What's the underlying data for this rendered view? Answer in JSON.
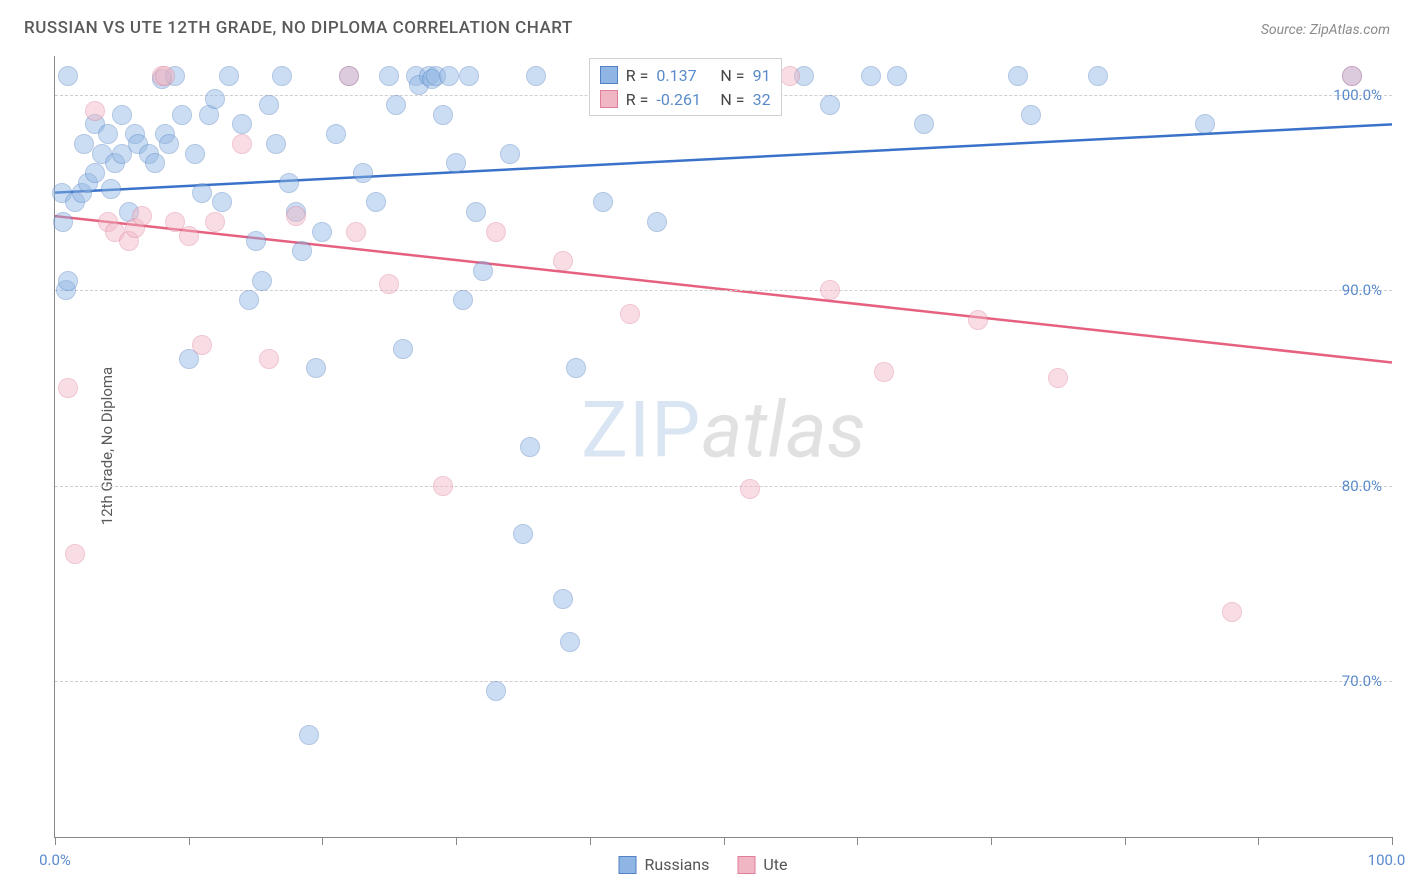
{
  "title": "RUSSIAN VS UTE 12TH GRADE, NO DIPLOMA CORRELATION CHART",
  "source": "Source: ZipAtlas.com",
  "ylabel": "12th Grade, No Diploma",
  "watermark": {
    "part1": "ZIP",
    "part2": "atlas"
  },
  "chart": {
    "type": "scatter",
    "background_color": "#ffffff",
    "grid_color": "#cfcfcf",
    "axis_color": "#888888",
    "tick_label_color": "#5a8acb",
    "label_color": "#5a5a5a",
    "title_fontsize": 17,
    "label_fontsize": 15,
    "xlim": [
      0,
      100
    ],
    "ylim": [
      62,
      102
    ],
    "y_gridlines": [
      70,
      80,
      90,
      100
    ],
    "y_tick_labels": [
      "70.0%",
      "80.0%",
      "90.0%",
      "100.0%"
    ],
    "x_ticks": [
      0,
      10,
      20,
      30,
      40,
      50,
      60,
      70,
      80,
      90,
      100
    ],
    "x_tick_labels": {
      "start": "0.0%",
      "end": "100.0%"
    },
    "point_radius": 10,
    "point_opacity": 0.45,
    "series": [
      {
        "name": "Russians",
        "fill": "#8eb5e3",
        "stroke": "#5382c4",
        "trend_color": "#3a72c9",
        "trend_width": 2.5,
        "R": "0.137",
        "N": "91",
        "trend": {
          "x1": 0,
          "y1": 95,
          "x2": 100,
          "y2": 98.5
        },
        "points": [
          [
            0.5,
            95
          ],
          [
            0.6,
            93.5
          ],
          [
            0.8,
            90
          ],
          [
            1,
            90.5
          ],
          [
            1,
            101
          ],
          [
            1.5,
            94.5
          ],
          [
            2,
            95
          ],
          [
            2.2,
            97.5
          ],
          [
            2.5,
            95.5
          ],
          [
            3,
            96
          ],
          [
            3,
            98.5
          ],
          [
            3.5,
            97
          ],
          [
            4,
            98
          ],
          [
            4.2,
            95.2
          ],
          [
            4.5,
            96.5
          ],
          [
            5,
            99
          ],
          [
            5,
            97
          ],
          [
            5.5,
            94
          ],
          [
            6,
            98
          ],
          [
            6.2,
            97.5
          ],
          [
            7,
            97
          ],
          [
            7.5,
            96.5
          ],
          [
            8,
            100.8
          ],
          [
            8.2,
            98
          ],
          [
            8.5,
            97.5
          ],
          [
            9,
            101
          ],
          [
            9.5,
            99
          ],
          [
            10,
            86.5
          ],
          [
            10.5,
            97
          ],
          [
            11,
            95
          ],
          [
            11.5,
            99
          ],
          [
            12,
            99.8
          ],
          [
            12.5,
            94.5
          ],
          [
            13,
            101
          ],
          [
            14,
            98.5
          ],
          [
            14.5,
            89.5
          ],
          [
            15,
            92.5
          ],
          [
            15.5,
            90.5
          ],
          [
            16,
            99.5
          ],
          [
            16.5,
            97.5
          ],
          [
            17,
            101
          ],
          [
            17.5,
            95.5
          ],
          [
            18,
            94
          ],
          [
            18.5,
            92
          ],
          [
            19,
            67.2
          ],
          [
            19.5,
            86
          ],
          [
            20,
            93
          ],
          [
            21,
            98
          ],
          [
            22,
            101
          ],
          [
            23,
            96
          ],
          [
            24,
            94.5
          ],
          [
            25,
            101
          ],
          [
            25.5,
            99.5
          ],
          [
            26,
            87
          ],
          [
            27,
            101
          ],
          [
            27.2,
            100.5
          ],
          [
            28,
            101
          ],
          [
            28.2,
            100.8
          ],
          [
            28.5,
            101
          ],
          [
            29,
            99
          ],
          [
            29.5,
            101
          ],
          [
            30,
            96.5
          ],
          [
            30.5,
            89.5
          ],
          [
            31,
            101
          ],
          [
            31.5,
            94
          ],
          [
            32,
            91
          ],
          [
            33,
            69.5
          ],
          [
            34,
            97
          ],
          [
            35,
            77.5
          ],
          [
            35.5,
            82
          ],
          [
            36,
            101
          ],
          [
            38,
            74.2
          ],
          [
            38.5,
            72
          ],
          [
            39,
            86
          ],
          [
            41,
            94.5
          ],
          [
            42,
            101
          ],
          [
            45,
            93.5
          ],
          [
            47,
            101
          ],
          [
            50,
            101
          ],
          [
            56,
            101
          ],
          [
            58,
            99.5
          ],
          [
            61,
            101
          ],
          [
            63,
            101
          ],
          [
            65,
            98.5
          ],
          [
            72,
            101
          ],
          [
            73,
            99
          ],
          [
            78,
            101
          ],
          [
            86,
            98.5
          ],
          [
            97,
            101
          ]
        ]
      },
      {
        "name": "Ute",
        "fill": "#f1b6c4",
        "stroke": "#e07f9a",
        "trend_color": "#e5617f",
        "trend_width": 2.5,
        "R": "-0.261",
        "N": "32",
        "trend": {
          "x1": 0,
          "y1": 93.8,
          "x2": 100,
          "y2": 86.3
        },
        "points": [
          [
            1,
            85
          ],
          [
            1.5,
            76.5
          ],
          [
            3,
            99.2
          ],
          [
            4,
            93.5
          ],
          [
            4.5,
            93
          ],
          [
            5.5,
            92.5
          ],
          [
            6,
            93.2
          ],
          [
            6.5,
            93.8
          ],
          [
            8,
            101
          ],
          [
            8.2,
            101
          ],
          [
            9,
            93.5
          ],
          [
            10,
            92.8
          ],
          [
            11,
            87.2
          ],
          [
            12,
            93.5
          ],
          [
            14,
            97.5
          ],
          [
            16,
            86.5
          ],
          [
            18,
            93.8
          ],
          [
            22,
            101
          ],
          [
            22.5,
            93
          ],
          [
            25,
            90.3
          ],
          [
            29,
            80
          ],
          [
            33,
            93
          ],
          [
            38,
            91.5
          ],
          [
            43,
            88.8
          ],
          [
            52,
            79.8
          ],
          [
            55,
            101
          ],
          [
            58,
            90
          ],
          [
            62,
            85.8
          ],
          [
            69,
            88.5
          ],
          [
            75,
            85.5
          ],
          [
            88,
            73.5
          ],
          [
            97,
            101
          ]
        ]
      }
    ],
    "legend_top": {
      "labels": {
        "R": "R =",
        "N": "N ="
      }
    },
    "legend_bottom": [
      {
        "label": "Russians",
        "fill": "#8eb5e3",
        "stroke": "#5382c4"
      },
      {
        "label": "Ute",
        "fill": "#f1b6c4",
        "stroke": "#e07f9a"
      }
    ]
  }
}
